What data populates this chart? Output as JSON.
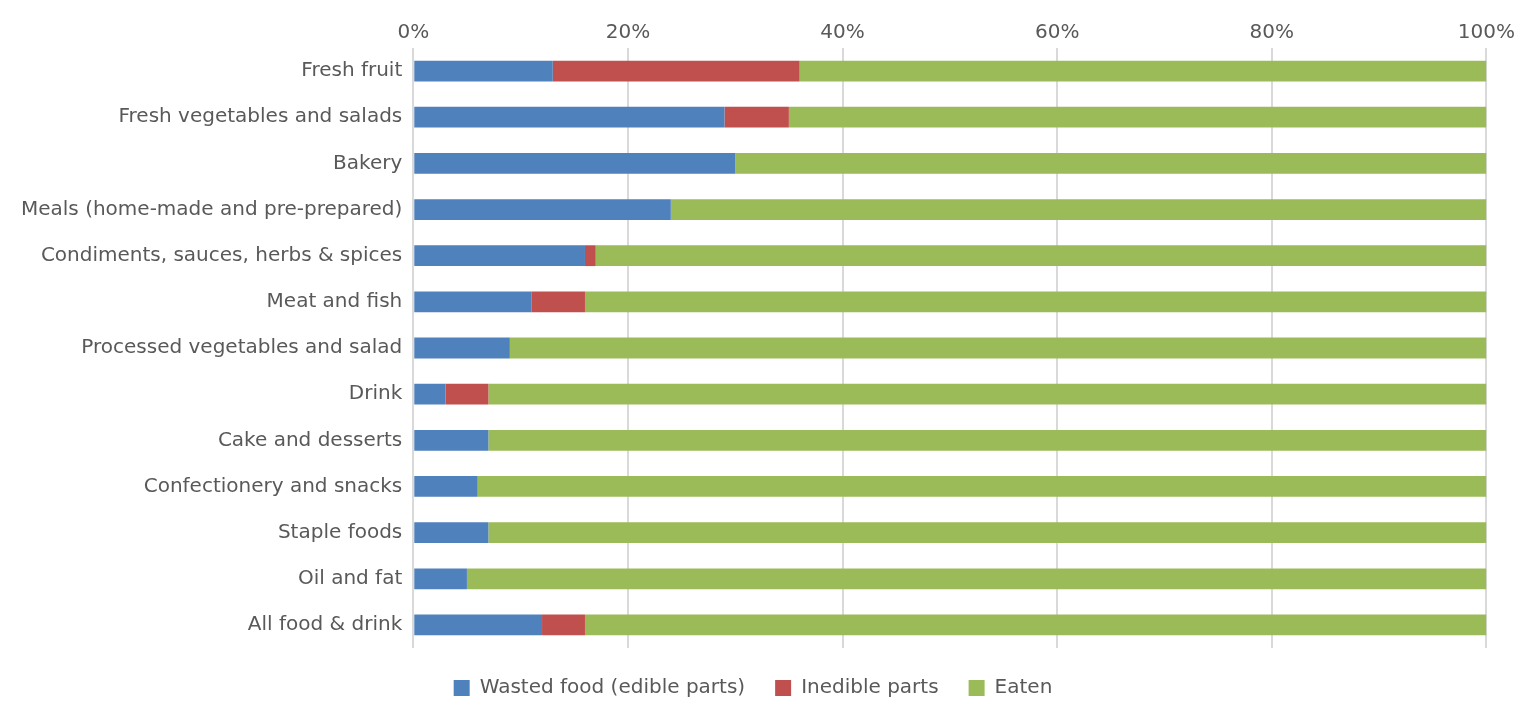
{
  "chart_data": {
    "type": "bar",
    "orientation": "horizontal",
    "stacked": true,
    "categories": [
      "Fresh fruit",
      "Fresh vegetables and salads",
      "Bakery",
      "Meals (home-made and pre-prepared)",
      "Condiments, sauces, herbs & spices",
      "Meat and fish",
      "Processed vegetables and salad",
      "Drink",
      "Cake and desserts",
      "Confectionery and snacks",
      "Staple foods",
      "Oil and fat",
      "All food & drink"
    ],
    "series": [
      {
        "name": "Wasted food (edible parts)",
        "color": "#4f81bd",
        "values": [
          13,
          29,
          30,
          24,
          16,
          11,
          9,
          3,
          7,
          6,
          7,
          5,
          12
        ]
      },
      {
        "name": "Inedible parts",
        "color": "#c0504d",
        "values": [
          23,
          6,
          0,
          0,
          1,
          5,
          0,
          4,
          0,
          0,
          0,
          0,
          4
        ]
      },
      {
        "name": "Eaten",
        "color": "#9bbb59",
        "values": [
          64,
          65,
          70,
          76,
          83,
          84,
          91,
          93,
          93,
          94,
          93,
          95,
          84
        ]
      }
    ],
    "xlim": [
      0,
      100
    ],
    "xticks": [
      {
        "value": 0,
        "label": "0%"
      },
      {
        "value": 20,
        "label": "20%"
      },
      {
        "value": 40,
        "label": "40%"
      },
      {
        "value": 60,
        "label": "60%"
      },
      {
        "value": 80,
        "label": "80%"
      },
      {
        "value": 100,
        "label": "100%"
      }
    ],
    "grid": "x",
    "legend": "bottom"
  }
}
